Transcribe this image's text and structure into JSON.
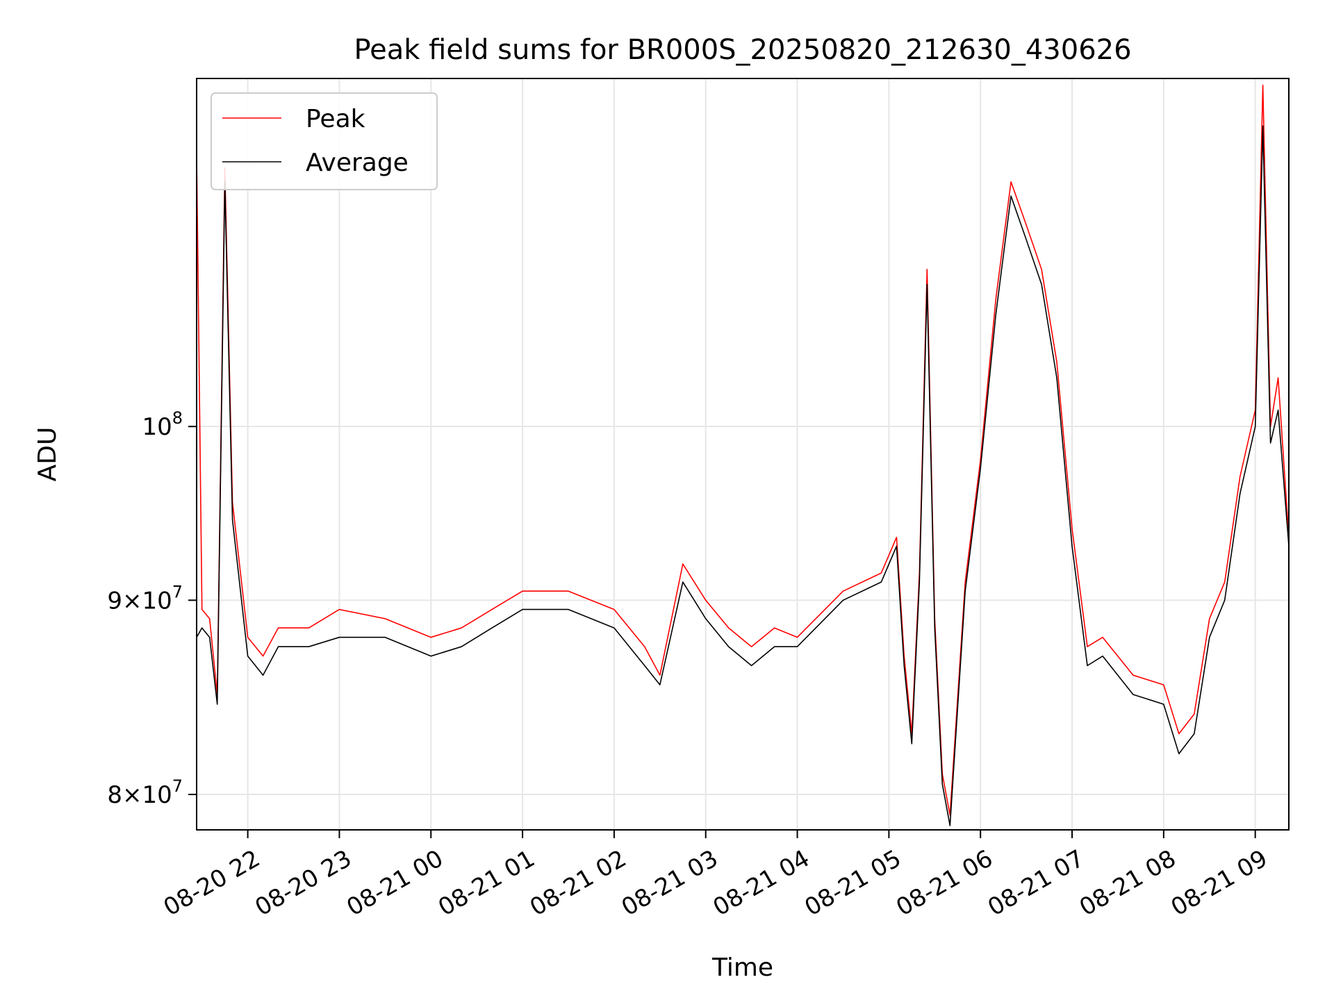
{
  "chart_data": {
    "type": "line",
    "title": "Peak field sums for BR000S_20250820_212630_430626",
    "xlabel": "Time",
    "ylabel": "ADU",
    "y_scale": "log",
    "grid": true,
    "legend_placement": "upper-left",
    "xlim": [
      "2025-08-20T21:26:30",
      "2025-08-21T09:22:00"
    ],
    "ylim": [
      78300000,
      123500000
    ],
    "x_ticks": [
      "08-20 22",
      "08-20 23",
      "08-21 00",
      "08-21 01",
      "08-21 02",
      "08-21 03",
      "08-21 04",
      "08-21 05",
      "08-21 06",
      "08-21 07",
      "08-21 08",
      "08-21 09"
    ],
    "x_tick_values": [
      "2025-08-20T22:00",
      "2025-08-20T23:00",
      "2025-08-21T00:00",
      "2025-08-21T01:00",
      "2025-08-21T02:00",
      "2025-08-21T03:00",
      "2025-08-21T04:00",
      "2025-08-21T05:00",
      "2025-08-21T06:00",
      "2025-08-21T07:00",
      "2025-08-21T08:00",
      "2025-08-21T09:00"
    ],
    "y_ticks": [
      {
        "value": 80000000,
        "mantissa": "8",
        "base": "10",
        "exp": "7"
      },
      {
        "value": 90000000,
        "mantissa": "9",
        "base": "10",
        "exp": "7"
      },
      {
        "value": 100000000,
        "mantissa": "",
        "base": "10",
        "exp": "8"
      }
    ],
    "series": [
      {
        "name": "Peak",
        "color": "#ff0000",
        "x": [
          "2025-08-20T21:26:30",
          "2025-08-20T21:30",
          "2025-08-20T21:35",
          "2025-08-20T21:40",
          "2025-08-20T21:45",
          "2025-08-20T21:50",
          "2025-08-20T22:00",
          "2025-08-20T22:10",
          "2025-08-20T22:20",
          "2025-08-20T22:40",
          "2025-08-20T23:00",
          "2025-08-20T23:30",
          "2025-08-21T00:00",
          "2025-08-21T00:20",
          "2025-08-21T00:40",
          "2025-08-21T01:00",
          "2025-08-21T01:30",
          "2025-08-21T02:00",
          "2025-08-21T02:20",
          "2025-08-21T02:30",
          "2025-08-21T02:45",
          "2025-08-21T03:00",
          "2025-08-21T03:15",
          "2025-08-21T03:30",
          "2025-08-21T03:45",
          "2025-08-21T04:00",
          "2025-08-21T04:30",
          "2025-08-21T04:55",
          "2025-08-21T05:05",
          "2025-08-21T05:10",
          "2025-08-21T05:15",
          "2025-08-21T05:20",
          "2025-08-21T05:25",
          "2025-08-21T05:30",
          "2025-08-21T05:35",
          "2025-08-21T05:40",
          "2025-08-21T05:50",
          "2025-08-21T06:00",
          "2025-08-21T06:10",
          "2025-08-21T06:20",
          "2025-08-21T06:30",
          "2025-08-21T06:40",
          "2025-08-21T06:50",
          "2025-08-21T07:00",
          "2025-08-21T07:10",
          "2025-08-21T07:20",
          "2025-08-21T07:40",
          "2025-08-21T08:00",
          "2025-08-21T08:10",
          "2025-08-21T08:20",
          "2025-08-21T08:30",
          "2025-08-21T08:40",
          "2025-08-21T08:50",
          "2025-08-21T09:00",
          "2025-08-21T09:05",
          "2025-08-21T09:10",
          "2025-08-21T09:15",
          "2025-08-21T09:22"
        ],
        "y": [
          118000000,
          89500000,
          89000000,
          85000000,
          117000000,
          95500000,
          88000000,
          87000000,
          88500000,
          88500000,
          89500000,
          89000000,
          88000000,
          88500000,
          89500000,
          90500000,
          90500000,
          89500000,
          87500000,
          86000000,
          92000000,
          90000000,
          88500000,
          87500000,
          88500000,
          88000000,
          90500000,
          91500000,
          93500000,
          87000000,
          83000000,
          91500000,
          110000000,
          89000000,
          81000000,
          79000000,
          91000000,
          98000000,
          108000000,
          116000000,
          113000000,
          110000000,
          104000000,
          94000000,
          87500000,
          88000000,
          86000000,
          85500000,
          83000000,
          84000000,
          89000000,
          91000000,
          97000000,
          101000000,
          123000000,
          100000000,
          103000000,
          93500000
        ]
      },
      {
        "name": "Average",
        "color": "#000000",
        "x": [
          "2025-08-20T21:26:30",
          "2025-08-20T21:30",
          "2025-08-20T21:35",
          "2025-08-20T21:40",
          "2025-08-20T21:45",
          "2025-08-20T21:50",
          "2025-08-20T22:00",
          "2025-08-20T22:10",
          "2025-08-20T22:20",
          "2025-08-20T22:40",
          "2025-08-20T23:00",
          "2025-08-20T23:30",
          "2025-08-21T00:00",
          "2025-08-21T00:20",
          "2025-08-21T00:40",
          "2025-08-21T01:00",
          "2025-08-21T01:30",
          "2025-08-21T02:00",
          "2025-08-21T02:20",
          "2025-08-21T02:30",
          "2025-08-21T02:45",
          "2025-08-21T03:00",
          "2025-08-21T03:15",
          "2025-08-21T03:30",
          "2025-08-21T03:45",
          "2025-08-21T04:00",
          "2025-08-21T04:30",
          "2025-08-21T04:55",
          "2025-08-21T05:05",
          "2025-08-21T05:10",
          "2025-08-21T05:15",
          "2025-08-21T05:20",
          "2025-08-21T05:25",
          "2025-08-21T05:30",
          "2025-08-21T05:35",
          "2025-08-21T05:40",
          "2025-08-21T05:50",
          "2025-08-21T06:00",
          "2025-08-21T06:10",
          "2025-08-21T06:20",
          "2025-08-21T06:30",
          "2025-08-21T06:40",
          "2025-08-21T06:50",
          "2025-08-21T07:00",
          "2025-08-21T07:10",
          "2025-08-21T07:20",
          "2025-08-21T07:40",
          "2025-08-21T08:00",
          "2025-08-21T08:10",
          "2025-08-21T08:20",
          "2025-08-21T08:30",
          "2025-08-21T08:40",
          "2025-08-21T08:50",
          "2025-08-21T09:00",
          "2025-08-21T09:05",
          "2025-08-21T09:10",
          "2025-08-21T09:15",
          "2025-08-21T09:22"
        ],
        "y": [
          88000000,
          88500000,
          88000000,
          84500000,
          116000000,
          94500000,
          87000000,
          86000000,
          87500000,
          87500000,
          88000000,
          88000000,
          87000000,
          87500000,
          88500000,
          89500000,
          89500000,
          88500000,
          86500000,
          85500000,
          91000000,
          89000000,
          87500000,
          86500000,
          87500000,
          87500000,
          90000000,
          91000000,
          93000000,
          86500000,
          82500000,
          91000000,
          109000000,
          88500000,
          80500000,
          78500000,
          90500000,
          97500000,
          107000000,
          115000000,
          112000000,
          109000000,
          103000000,
          93000000,
          86500000,
          87000000,
          85000000,
          84500000,
          82000000,
          83000000,
          88000000,
          90000000,
          96000000,
          100000000,
          120000000,
          99000000,
          101000000,
          93000000
        ]
      }
    ]
  }
}
